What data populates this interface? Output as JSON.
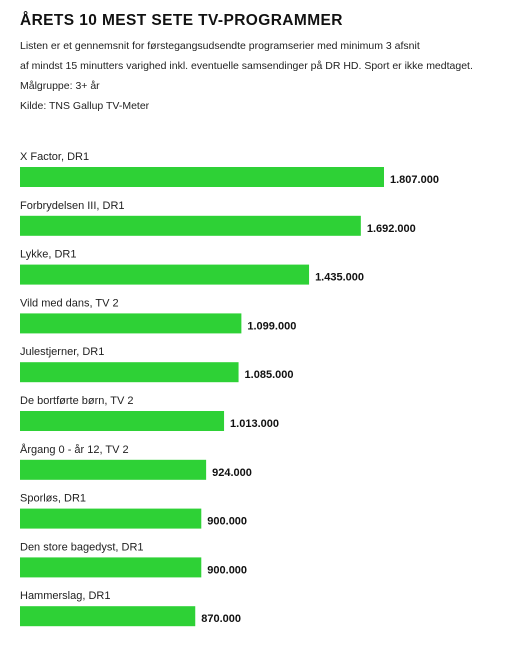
{
  "header": {
    "title": "ÅRETS 10 MEST SETE TV-PROGRAMMER",
    "line1": "Listen er et gennemsnit for førstegangsudsendte programserier med minimum 3 afsnit",
    "line2": "af mindst 15 minutters varighed inkl. eventuelle samsendinger på DR HD. Sport er ikke medtaget.",
    "line3": "Målgruppe: 3+ år",
    "line4": "Kilde: TNS Gallup TV-Meter"
  },
  "colors": {
    "bar": "#2ed136"
  },
  "chart_data": {
    "type": "bar",
    "orientation": "horizontal",
    "title": "ÅRETS 10 MEST SETE TV-PROGRAMMER",
    "categories": [
      "X Factor, DR1",
      "Forbrydelsen III, DR1",
      "Lykke, DR1",
      "Vild med dans, TV 2",
      "Julestjerner, DR1",
      "De bortførte børn, TV 2",
      "Årgang 0 - år 12, TV 2",
      "Sporløs, DR1",
      "Den store bagedyst, DR1",
      "Hammerslag, DR1"
    ],
    "values": [
      1807000,
      1692000,
      1435000,
      1099000,
      1085000,
      1013000,
      924000,
      900000,
      900000,
      870000
    ],
    "value_labels": [
      "1.807.000",
      "1.692.000",
      "1.435.000",
      "1.099.000",
      "1.085.000",
      "1.013.000",
      "924.000",
      "900.000",
      "900.000",
      "870.000"
    ],
    "grid": false,
    "legend": "none"
  }
}
